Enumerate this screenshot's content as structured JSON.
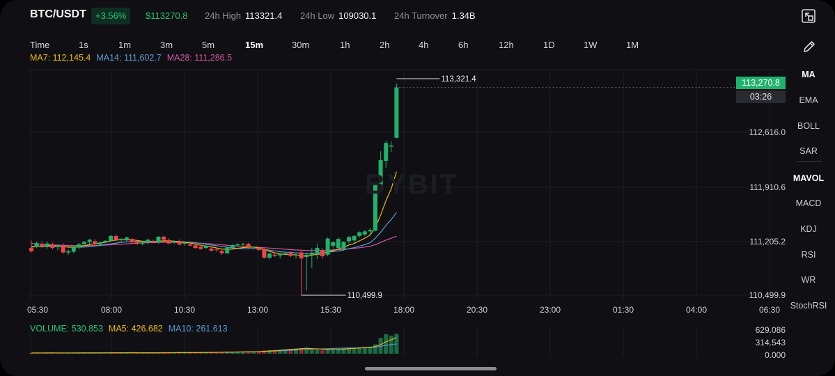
{
  "header": {
    "pair": "BTC/USDT",
    "change": "+3.56%",
    "last_price": "$113270.8",
    "high_label": "24h High",
    "high_value": "113321.4",
    "low_label": "24h Low",
    "low_value": "109030.1",
    "turnover_label": "24h Turnover",
    "turnover_value": "1.34B"
  },
  "timeframes": {
    "items": [
      "Time",
      "1s",
      "1m",
      "3m",
      "5m",
      "15m",
      "30m",
      "1h",
      "2h",
      "4h",
      "6h",
      "12h",
      "1D",
      "1W",
      "1M"
    ],
    "active": "15m"
  },
  "ma_legend": {
    "ma7": "MA7: 112,145.4",
    "ma14": "MA14: 111,602.7",
    "ma28": "MA28: 111,286.5"
  },
  "indicators": {
    "items": [
      "MA",
      "EMA",
      "BOLL",
      "SAR",
      "MAVOL",
      "MACD",
      "KDJ",
      "RSI",
      "WR",
      "StochRSI"
    ],
    "active": [
      "MA",
      "MAVOL"
    ]
  },
  "price_axis": [
    "112,616.0",
    "111,910.6",
    "111,205.2",
    "110,499.9"
  ],
  "time_axis": [
    "05:30",
    "08:00",
    "10:30",
    "13:00",
    "15:30",
    "18:00",
    "20:30",
    "23:00",
    "01:30",
    "04:00",
    "06:30"
  ],
  "current_price_tag": "113,270.8",
  "countdown": "03:26",
  "high_marker": "113,321.4",
  "low_marker": "110,499.9",
  "watermark": "BYBIT",
  "volume": {
    "volume_label": "VOLUME: 530.853",
    "ma5_label": "MA5: 426.682",
    "ma10_label": "MA10: 261.613",
    "axis": [
      "629.086",
      "314.543",
      "0.000"
    ]
  },
  "colors": {
    "up": "#20b26c",
    "down": "#ef454a",
    "ma7": "#f0b90b",
    "ma14": "#5d9bd5",
    "ma28": "#d2559f",
    "volume_label": "#27c27a"
  },
  "chart_data": {
    "type": "candlestick",
    "price_range": [
      110499.9,
      113321.4
    ],
    "volume_range": [
      0,
      629.086
    ],
    "candles": [
      {
        "o": 111130,
        "h": 111230,
        "l": 111070,
        "c": 111085
      },
      {
        "o": 111150,
        "h": 111215,
        "l": 111130,
        "c": 111195
      },
      {
        "o": 111180,
        "h": 111210,
        "l": 111130,
        "c": 111160
      },
      {
        "o": 111160,
        "h": 111215,
        "l": 111120,
        "c": 111190
      },
      {
        "o": 111180,
        "h": 111200,
        "l": 111110,
        "c": 111130
      },
      {
        "o": 111140,
        "h": 111180,
        "l": 111100,
        "c": 111165
      },
      {
        "o": 111160,
        "h": 111195,
        "l": 111050,
        "c": 111070
      },
      {
        "o": 111070,
        "h": 111110,
        "l": 111040,
        "c": 111085
      },
      {
        "o": 111080,
        "h": 111160,
        "l": 111060,
        "c": 111140
      },
      {
        "o": 111135,
        "h": 111195,
        "l": 111110,
        "c": 111180
      },
      {
        "o": 111180,
        "h": 111220,
        "l": 111160,
        "c": 111210
      },
      {
        "o": 111210,
        "h": 111250,
        "l": 111180,
        "c": 111240
      },
      {
        "o": 111220,
        "h": 111245,
        "l": 111170,
        "c": 111190
      },
      {
        "o": 111175,
        "h": 111215,
        "l": 111150,
        "c": 111205
      },
      {
        "o": 111205,
        "h": 111235,
        "l": 111195,
        "c": 111225
      },
      {
        "o": 111225,
        "h": 111300,
        "l": 111210,
        "c": 111290
      },
      {
        "o": 111290,
        "h": 111310,
        "l": 111220,
        "c": 111235
      },
      {
        "o": 111240,
        "h": 111265,
        "l": 111200,
        "c": 111250
      },
      {
        "o": 111230,
        "h": 111280,
        "l": 111225,
        "c": 111270
      },
      {
        "o": 111250,
        "h": 111265,
        "l": 111190,
        "c": 111205
      },
      {
        "o": 111210,
        "h": 111225,
        "l": 111170,
        "c": 111185
      },
      {
        "o": 111185,
        "h": 111215,
        "l": 111165,
        "c": 111205
      },
      {
        "o": 111205,
        "h": 111255,
        "l": 111175,
        "c": 111240
      },
      {
        "o": 111220,
        "h": 111240,
        "l": 111195,
        "c": 111205
      },
      {
        "o": 111205,
        "h": 111290,
        "l": 111185,
        "c": 111280
      },
      {
        "o": 111280,
        "h": 111295,
        "l": 111230,
        "c": 111240
      },
      {
        "o": 111235,
        "h": 111260,
        "l": 111180,
        "c": 111190
      },
      {
        "o": 111200,
        "h": 111230,
        "l": 111180,
        "c": 111220
      },
      {
        "o": 111215,
        "h": 111245,
        "l": 111165,
        "c": 111175
      },
      {
        "o": 111185,
        "h": 111210,
        "l": 111160,
        "c": 111200
      },
      {
        "o": 111175,
        "h": 111205,
        "l": 111155,
        "c": 111160
      },
      {
        "o": 111165,
        "h": 111210,
        "l": 111120,
        "c": 111130
      },
      {
        "o": 111145,
        "h": 111175,
        "l": 111105,
        "c": 111115
      },
      {
        "o": 111130,
        "h": 111170,
        "l": 111120,
        "c": 111160
      },
      {
        "o": 111120,
        "h": 111150,
        "l": 111085,
        "c": 111095
      },
      {
        "o": 111110,
        "h": 111135,
        "l": 111080,
        "c": 111100
      },
      {
        "o": 111090,
        "h": 111120,
        "l": 111040,
        "c": 111060
      },
      {
        "o": 111060,
        "h": 111150,
        "l": 111050,
        "c": 111135
      },
      {
        "o": 111130,
        "h": 111180,
        "l": 111110,
        "c": 111170
      },
      {
        "o": 111165,
        "h": 111190,
        "l": 111145,
        "c": 111180
      },
      {
        "o": 111175,
        "h": 111195,
        "l": 111145,
        "c": 111185
      },
      {
        "o": 111185,
        "h": 111200,
        "l": 111125,
        "c": 111140
      },
      {
        "o": 111140,
        "h": 111155,
        "l": 111125,
        "c": 111145
      },
      {
        "o": 111130,
        "h": 111140,
        "l": 111090,
        "c": 111105
      },
      {
        "o": 111110,
        "h": 111130,
        "l": 110990,
        "c": 111000
      },
      {
        "o": 111000,
        "h": 111070,
        "l": 110980,
        "c": 111055
      },
      {
        "o": 111040,
        "h": 111070,
        "l": 111010,
        "c": 111025
      },
      {
        "o": 111030,
        "h": 111065,
        "l": 110990,
        "c": 111050
      },
      {
        "o": 111050,
        "h": 111070,
        "l": 111030,
        "c": 111060
      },
      {
        "o": 111060,
        "h": 111090,
        "l": 111010,
        "c": 111025
      },
      {
        "o": 111030,
        "h": 111055,
        "l": 110990,
        "c": 111040
      },
      {
        "o": 111070,
        "h": 111090,
        "l": 110499.9,
        "c": 110990
      },
      {
        "o": 111010,
        "h": 111060,
        "l": 110560,
        "c": 111040
      },
      {
        "o": 111040,
        "h": 111130,
        "l": 110860,
        "c": 111060
      },
      {
        "o": 111050,
        "h": 111190,
        "l": 110980,
        "c": 111130
      },
      {
        "o": 111100,
        "h": 111130,
        "l": 110990,
        "c": 111020
      },
      {
        "o": 111040,
        "h": 111270,
        "l": 111020,
        "c": 111255
      },
      {
        "o": 111160,
        "h": 111220,
        "l": 111120,
        "c": 111205
      },
      {
        "o": 111130,
        "h": 111270,
        "l": 111110,
        "c": 111250
      },
      {
        "o": 111120,
        "h": 111220,
        "l": 111090,
        "c": 111210
      },
      {
        "o": 111220,
        "h": 111290,
        "l": 111190,
        "c": 111275
      },
      {
        "o": 111230,
        "h": 111300,
        "l": 111200,
        "c": 111290
      },
      {
        "o": 111290,
        "h": 111350,
        "l": 111270,
        "c": 111340
      },
      {
        "o": 111310,
        "h": 111370,
        "l": 111290,
        "c": 111350
      },
      {
        "o": 111350,
        "h": 111400,
        "l": 111290,
        "c": 111370
      },
      {
        "o": 111360,
        "h": 111980,
        "l": 111350,
        "c": 111970
      },
      {
        "o": 111960,
        "h": 112420,
        "l": 111900,
        "c": 112300
      },
      {
        "o": 112290,
        "h": 112560,
        "l": 112200,
        "c": 112530
      },
      {
        "o": 112480,
        "h": 112550,
        "l": 112410,
        "c": 112495
      },
      {
        "o": 112600,
        "h": 113321.4,
        "l": 112590,
        "c": 113270.8
      }
    ],
    "volumes": [
      20,
      22,
      20,
      25,
      18,
      20,
      22,
      20,
      24,
      22,
      25,
      23,
      20,
      22,
      25,
      30,
      22,
      24,
      26,
      28,
      22,
      20,
      24,
      25,
      28,
      30,
      32,
      30,
      35,
      28,
      32,
      30,
      35,
      38,
      40,
      42,
      45,
      48,
      52,
      50,
      55,
      58,
      60,
      62,
      85,
      95,
      100,
      110,
      120,
      130,
      140,
      150,
      160,
      100,
      105,
      90,
      110,
      120,
      130,
      140,
      150,
      160,
      170,
      180,
      190,
      250,
      420,
      520,
      480,
      530.853
    ],
    "ma5_points": [
      20,
      21,
      21,
      22,
      22,
      21,
      21,
      21,
      21,
      22,
      23,
      23,
      23,
      23,
      23,
      24,
      24,
      25,
      25,
      26,
      25,
      24,
      24,
      24,
      24,
      25,
      27,
      29,
      31,
      31,
      31,
      31,
      32,
      33,
      35,
      37,
      40,
      43,
      46,
      48,
      50,
      53,
      55,
      57,
      64,
      72,
      80,
      90,
      102,
      114,
      124,
      134,
      144,
      136,
      131,
      121,
      112,
      105,
      111,
      121,
      131,
      141,
      151,
      161,
      171,
      190,
      243,
      317,
      373,
      426.682
    ],
    "ma10_points": [
      20,
      21,
      21,
      21,
      21,
      21,
      21,
      21,
      21,
      21,
      22,
      22,
      22,
      22,
      23,
      23,
      24,
      24,
      24,
      25,
      24,
      24,
      24,
      24,
      25,
      25,
      26,
      27,
      28,
      28,
      29,
      30,
      31,
      32,
      33,
      34,
      36,
      38,
      41,
      43,
      45,
      48,
      51,
      53,
      59,
      65,
      71,
      77,
      84,
      91,
      98,
      105,
      115,
      120,
      127,
      130,
      134,
      140,
      145,
      150,
      152,
      152,
      155,
      158,
      163,
      174,
      198,
      224,
      245,
      261.613
    ],
    "ma7_points": [
      111140,
      111150,
      111155,
      111160,
      111160,
      111155,
      111150,
      111140,
      111140,
      111145,
      111160,
      111175,
      111185,
      111195,
      111205,
      111225,
      111235,
      111240,
      111245,
      111240,
      111230,
      111220,
      111215,
      111215,
      111220,
      111225,
      111225,
      111220,
      111215,
      111205,
      111195,
      111180,
      111165,
      111155,
      111145,
      111130,
      111115,
      111110,
      111115,
      111125,
      111135,
      111140,
      111140,
      111130,
      111110,
      111085,
      111065,
      111050,
      111045,
      111040,
      111040,
      111020,
      111025,
      111035,
      111045,
      111050,
      111080,
      111095,
      111115,
      111140,
      111170,
      111190,
      111225,
      111260,
      111300,
      111400,
      111570,
      111760,
      111920,
      112145.4
    ],
    "ma14_points": [
      111150,
      111150,
      111150,
      111150,
      111150,
      111150,
      111148,
      111145,
      111142,
      111140,
      111142,
      111148,
      111155,
      111165,
      111175,
      111185,
      111195,
      111205,
      111210,
      111215,
      111218,
      111220,
      111220,
      111220,
      111220,
      111222,
      111222,
      111220,
      111215,
      111210,
      111205,
      111198,
      111190,
      111180,
      111170,
      111160,
      111150,
      111140,
      111130,
      111125,
      111120,
      111120,
      111120,
      111118,
      111110,
      111100,
      111090,
      111080,
      111075,
      111070,
      111065,
      111060,
      111060,
      111060,
      111065,
      111070,
      111075,
      111080,
      111090,
      111105,
      111120,
      111135,
      111155,
      111175,
      111200,
      111260,
      111340,
      111430,
      111510,
      111602.7
    ],
    "ma28_points": [
      111190,
      111185,
      111180,
      111175,
      111170,
      111168,
      111166,
      111164,
      111162,
      111160,
      111160,
      111160,
      111162,
      111165,
      111168,
      111172,
      111176,
      111180,
      111185,
      111190,
      111195,
      111198,
      111200,
      111202,
      111204,
      111205,
      111206,
      111205,
      111204,
      111203,
      111200,
      111197,
      111193,
      111188,
      111183,
      111178,
      111172,
      111166,
      111160,
      111155,
      111150,
      111146,
      111142,
      111138,
      111133,
      111128,
      111123,
      111118,
      111113,
      111108,
      111103,
      111100,
      111098,
      111097,
      111097,
      111098,
      111100,
      111103,
      111107,
      111112,
      111118,
      111125,
      111133,
      111142,
      111152,
      111175,
      111205,
      111235,
      111260,
      111286.5
    ]
  }
}
